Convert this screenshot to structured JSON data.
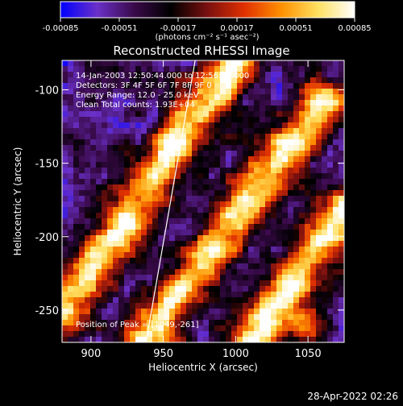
{
  "colors": {
    "background": "#000000",
    "text": "#ffffff",
    "limb_line": "#ffffff"
  },
  "chart_data": {
    "type": "heatmap",
    "title": "Reconstructed RHESSI Image",
    "xlabel": "Heliocentric X (arcsec)",
    "ylabel": "Heliocentric Y (arcsec)",
    "xlim": [
      880,
      1075
    ],
    "ylim": [
      -272,
      -80
    ],
    "x_ticks": [
      900,
      950,
      1000,
      1050
    ],
    "y_ticks": [
      -250,
      -200,
      -150,
      -100
    ],
    "colorbar": {
      "label": "(photons cm⁻² s⁻¹ asec⁻²)",
      "range": [
        -0.00085,
        0.00085
      ],
      "tick_labels": [
        "-0.00085",
        "-0.00051",
        "-0.00017",
        "0.00017",
        "0.00051",
        "0.00085"
      ],
      "colormap": [
        "#0000ff",
        "#6a30c8",
        "#3a0a4a",
        "#000000",
        "#7a1010",
        "#e03000",
        "#ff9000",
        "#ffe060",
        "#ffffff"
      ]
    },
    "annotations": [
      "14-Jan-2003 12:50:44.000 to 12:56:44.000",
      "Detectors: 3F 4F 5F 6F 7F 8F 9F 0",
      "Energy Range: 12.0 - 25.0 keV",
      "Clean     Total counts: 1.93E+04"
    ],
    "peak_label": "Position of Peak = [1049,-261]",
    "peak": {
      "x": 1049,
      "y": -261
    },
    "limb_line": {
      "x1": 938,
      "y1": -272,
      "x2": 972,
      "y2": -80
    },
    "bright_ridges": [
      {
        "x1": 880,
        "y1": -252,
        "x2": 1000,
        "y2": -80
      },
      {
        "x1": 935,
        "y1": -272,
        "x2": 1060,
        "y2": -110
      },
      {
        "x1": 1010,
        "y1": -272,
        "x2": 1075,
        "y2": -180
      }
    ],
    "timestamp": "28-Apr-2022 02:26"
  }
}
